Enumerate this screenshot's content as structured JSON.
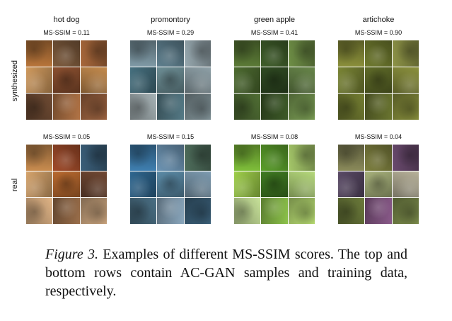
{
  "columns": [
    {
      "title": "hot dog",
      "synth_score": "MS-SSIM = 0.11",
      "real_score": "MS-SSIM = 0.05"
    },
    {
      "title": "promontory",
      "synth_score": "MS-SSIM = 0.29",
      "real_score": "MS-SSIM = 0.15"
    },
    {
      "title": "green apple",
      "synth_score": "MS-SSIM = 0.41",
      "real_score": "MS-SSIM = 0.08"
    },
    {
      "title": "artichoke",
      "synth_score": "MS-SSIM = 0.90",
      "real_score": "MS-SSIM = 0.04"
    }
  ],
  "row_labels": {
    "synthesized": "synthesized",
    "real": "real"
  },
  "caption": {
    "figure_label": "Figure 3.",
    "text": " Examples of different MS-SSIM scores.  The top and bottom rows contain AC-GAN samples and training data, respectively."
  },
  "palettes": {
    "hotdog_synth": [
      "#b8753a",
      "#7d5a3c",
      "#a9683b",
      "#d09a5e",
      "#8a4f2f",
      "#c48b4e",
      "#6f4b33",
      "#b27446",
      "#9c6340"
    ],
    "hotdog_real": [
      "#c98c4f",
      "#a04b2a",
      "#3b5f7a",
      "#d6a46c",
      "#b8692f",
      "#704833",
      "#e0b486",
      "#9a6e4a",
      "#c7a27c"
    ],
    "promontory_synth": [
      "#7f9aa6",
      "#5e7f8e",
      "#98a9b0",
      "#46707f",
      "#6c8d94",
      "#8fa1a8",
      "#a7b3b6",
      "#557a86",
      "#7e8f94"
    ],
    "promontory_real": [
      "#3f7fb0",
      "#6d94b3",
      "#4f6e5c",
      "#2f6790",
      "#5b8aa6",
      "#7d9bb0",
      "#4a6f84",
      "#8aa7bd",
      "#3a5f78"
    ],
    "apple_synth": [
      "#5b7a36",
      "#3f5e2a",
      "#6f8f46",
      "#4d6b30",
      "#2f4a22",
      "#68864a",
      "#506e34",
      "#3d5a28",
      "#789a52"
    ],
    "apple_real": [
      "#7fbf3a",
      "#5a9e2a",
      "#a6c86a",
      "#9fcf4a",
      "#3f7a22",
      "#b6d97c",
      "#c8e29a",
      "#8cc24a",
      "#b4d870"
    ],
    "artichoke_synth": [
      "#8a8f3a",
      "#6f7a2e",
      "#8e9447",
      "#7a8535",
      "#5e6a28",
      "#8b913e",
      "#737d31",
      "#6a7530",
      "#858c3b"
    ],
    "artichoke_real": [
      "#8a8a5a",
      "#7d7f3e",
      "#6a4a6e",
      "#5a4a66",
      "#a6b07a",
      "#b8b29a",
      "#6b7a3a",
      "#8a5a8a",
      "#7a8a4a"
    ]
  }
}
